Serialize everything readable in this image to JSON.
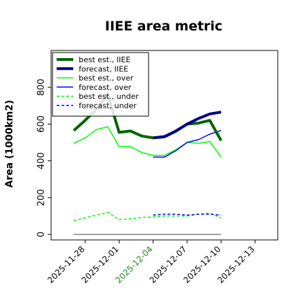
{
  "chart_data": {
    "type": "line",
    "title": "IIEE area metric",
    "ylabel": "Area (1000km2)",
    "xlabel": "",
    "ylim": [
      -30,
      1000
    ],
    "xlim": [
      "2025-11-25",
      "2025-12-15"
    ],
    "yticks": [
      0,
      200,
      400,
      600,
      800
    ],
    "ytick_labels": [
      "0",
      "200",
      "400",
      "600",
      "800"
    ],
    "xtick_labels": [
      {
        "date": "2025-11-28",
        "label": "2025-11-28",
        "color": "#000000"
      },
      {
        "date": "2025-12-01",
        "label": "2025-12-01",
        "color": "#000000"
      },
      {
        "date": "2025-12-04",
        "label": "2025-12-04",
        "color": "#1e8c1e"
      },
      {
        "date": "2025-12-07",
        "label": "2025-12-07",
        "color": "#000000"
      },
      {
        "date": "2025-12-10",
        "label": "2025-12-10",
        "color": "#000000"
      },
      {
        "date": "2025-12-13",
        "label": "2025-12-13",
        "color": "#000000"
      }
    ],
    "grid": false,
    "legend_position": "upper-left",
    "series": [
      {
        "name": "best est., IIEE",
        "color": "#006400",
        "style": "solid",
        "weight": "thick",
        "points": [
          [
            "2025-11-27",
            565
          ],
          [
            "2025-11-28",
            620
          ],
          [
            "2025-11-29",
            680
          ],
          [
            "2025-11-30",
            760
          ],
          [
            "2025-12-01",
            555
          ],
          [
            "2025-12-02",
            562
          ],
          [
            "2025-12-03",
            535
          ],
          [
            "2025-12-04",
            525
          ],
          [
            "2025-12-05",
            530
          ],
          [
            "2025-12-06",
            560
          ],
          [
            "2025-12-07",
            600
          ],
          [
            "2025-12-08",
            605
          ],
          [
            "2025-12-09",
            620
          ],
          [
            "2025-12-10",
            510
          ]
        ]
      },
      {
        "name": "forecast, IIEE",
        "color": "#00008b",
        "style": "solid",
        "weight": "thick",
        "points": [
          [
            "2025-12-04",
            525
          ],
          [
            "2025-12-05",
            532
          ],
          [
            "2025-12-06",
            562
          ],
          [
            "2025-12-07",
            600
          ],
          [
            "2025-12-08",
            630
          ],
          [
            "2025-12-09",
            655
          ],
          [
            "2025-12-10",
            665
          ]
        ]
      },
      {
        "name": "best est., over",
        "color": "#00ff00",
        "style": "solid",
        "weight": "thin",
        "points": [
          [
            "2025-11-27",
            495
          ],
          [
            "2025-11-28",
            525
          ],
          [
            "2025-11-29",
            570
          ],
          [
            "2025-11-30",
            585
          ],
          [
            "2025-12-01",
            478
          ],
          [
            "2025-12-02",
            478
          ],
          [
            "2025-12-03",
            445
          ],
          [
            "2025-12-04",
            430
          ],
          [
            "2025-12-05",
            430
          ],
          [
            "2025-12-06",
            460
          ],
          [
            "2025-12-07",
            500
          ],
          [
            "2025-12-08",
            495
          ],
          [
            "2025-12-09",
            505
          ],
          [
            "2025-12-10",
            420
          ]
        ]
      },
      {
        "name": "forecast, over",
        "color": "#0000ff",
        "style": "solid",
        "weight": "thin",
        "points": [
          [
            "2025-12-04",
            420
          ],
          [
            "2025-12-05",
            420
          ],
          [
            "2025-12-06",
            455
          ],
          [
            "2025-12-07",
            500
          ],
          [
            "2025-12-08",
            515
          ],
          [
            "2025-12-09",
            545
          ],
          [
            "2025-12-10",
            565
          ]
        ]
      },
      {
        "name": "best est., under",
        "color": "#00ff00",
        "style": "dashed",
        "weight": "thin",
        "points": [
          [
            "2025-11-27",
            75
          ],
          [
            "2025-11-28",
            90
          ],
          [
            "2025-11-29",
            105
          ],
          [
            "2025-11-30",
            120
          ],
          [
            "2025-12-01",
            80
          ],
          [
            "2025-12-02",
            85
          ],
          [
            "2025-12-03",
            92
          ],
          [
            "2025-12-04",
            95
          ],
          [
            "2025-12-05",
            100
          ],
          [
            "2025-12-06",
            100
          ],
          [
            "2025-12-07",
            100
          ],
          [
            "2025-12-08",
            110
          ],
          [
            "2025-12-09",
            115
          ],
          [
            "2025-12-10",
            90
          ]
        ]
      },
      {
        "name": "forecast, under",
        "color": "#0000ff",
        "style": "dashed",
        "weight": "thin",
        "points": [
          [
            "2025-12-04",
            105
          ],
          [
            "2025-12-05",
            110
          ],
          [
            "2025-12-06",
            110
          ],
          [
            "2025-12-07",
            105
          ],
          [
            "2025-12-08",
            110
          ],
          [
            "2025-12-09",
            110
          ],
          [
            "2025-12-10",
            105
          ]
        ]
      }
    ],
    "reference_lines": [
      {
        "y": 0,
        "from": "2025-11-27",
        "to": "2025-12-10",
        "color": "#808080"
      }
    ]
  }
}
